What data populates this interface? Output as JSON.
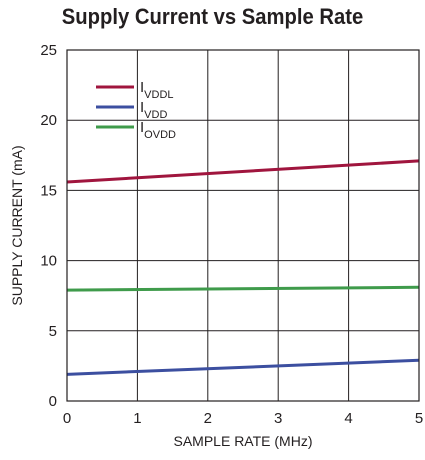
{
  "chart_data": {
    "type": "line",
    "title": "Supply Current vs Sample Rate",
    "xlabel": "SAMPLE RATE (MHz)",
    "ylabel": "SUPPLY CURRENT (mA)",
    "xlim": [
      0,
      5
    ],
    "ylim": [
      0,
      25
    ],
    "xticks": [
      0,
      1,
      2,
      3,
      4,
      5
    ],
    "yticks": [
      0,
      5,
      10,
      15,
      20,
      25
    ],
    "grid": true,
    "legend_position": "top-left",
    "series": [
      {
        "name": "I",
        "name_subscript": "VDDL",
        "color": "#a0153e",
        "x": [
          0,
          5
        ],
        "y": [
          15.6,
          17.1
        ]
      },
      {
        "name": "I",
        "name_subscript": "VDD",
        "color": "#3c4fa0",
        "x": [
          0,
          5
        ],
        "y": [
          1.9,
          2.9
        ]
      },
      {
        "name": "I",
        "name_subscript": "OVDD",
        "color": "#3f9b4b",
        "x": [
          0,
          5
        ],
        "y": [
          7.9,
          8.1
        ]
      }
    ]
  }
}
